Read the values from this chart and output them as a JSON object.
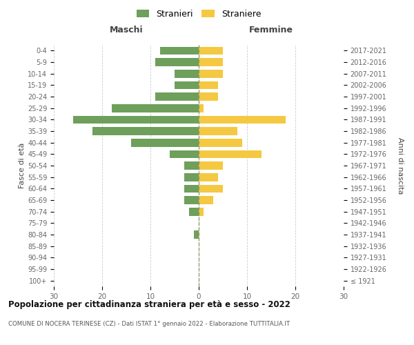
{
  "age_groups": [
    "100+",
    "95-99",
    "90-94",
    "85-89",
    "80-84",
    "75-79",
    "70-74",
    "65-69",
    "60-64",
    "55-59",
    "50-54",
    "45-49",
    "40-44",
    "35-39",
    "30-34",
    "25-29",
    "20-24",
    "15-19",
    "10-14",
    "5-9",
    "0-4"
  ],
  "birth_years": [
    "≤ 1921",
    "1922-1926",
    "1927-1931",
    "1932-1936",
    "1937-1941",
    "1942-1946",
    "1947-1951",
    "1952-1956",
    "1957-1961",
    "1962-1966",
    "1967-1971",
    "1972-1976",
    "1977-1981",
    "1982-1986",
    "1987-1991",
    "1992-1996",
    "1997-2001",
    "2002-2006",
    "2007-2011",
    "2012-2016",
    "2017-2021"
  ],
  "maschi": [
    0,
    0,
    0,
    0,
    1,
    0,
    2,
    3,
    3,
    3,
    3,
    6,
    14,
    22,
    26,
    18,
    9,
    5,
    5,
    9,
    8
  ],
  "femmine": [
    0,
    0,
    0,
    0,
    0,
    0,
    1,
    3,
    5,
    4,
    5,
    13,
    9,
    8,
    18,
    1,
    4,
    4,
    5,
    5,
    5
  ],
  "color_maschi": "#6e9f5b",
  "color_femmine": "#f5c842",
  "title": "Popolazione per cittadinanza straniera per età e sesso - 2022",
  "subtitle": "COMUNE DI NOCERA TERINESE (CZ) - Dati ISTAT 1° gennaio 2022 - Elaborazione TUTTITALIA.IT",
  "header_maschi": "Maschi",
  "header_femmine": "Femmine",
  "ylabel_left": "Fasce di età",
  "ylabel_right": "Anni di nascita",
  "legend_maschi": "Stranieri",
  "legend_femmine": "Straniere",
  "xlim": 30,
  "bar_height": 0.7,
  "fig_bg": "#ffffff",
  "grid_color": "#cccccc",
  "grid_style": "--",
  "zero_line_color": "#999966",
  "zero_line_style": "--",
  "tick_color": "#666666",
  "label_color": "#444444"
}
